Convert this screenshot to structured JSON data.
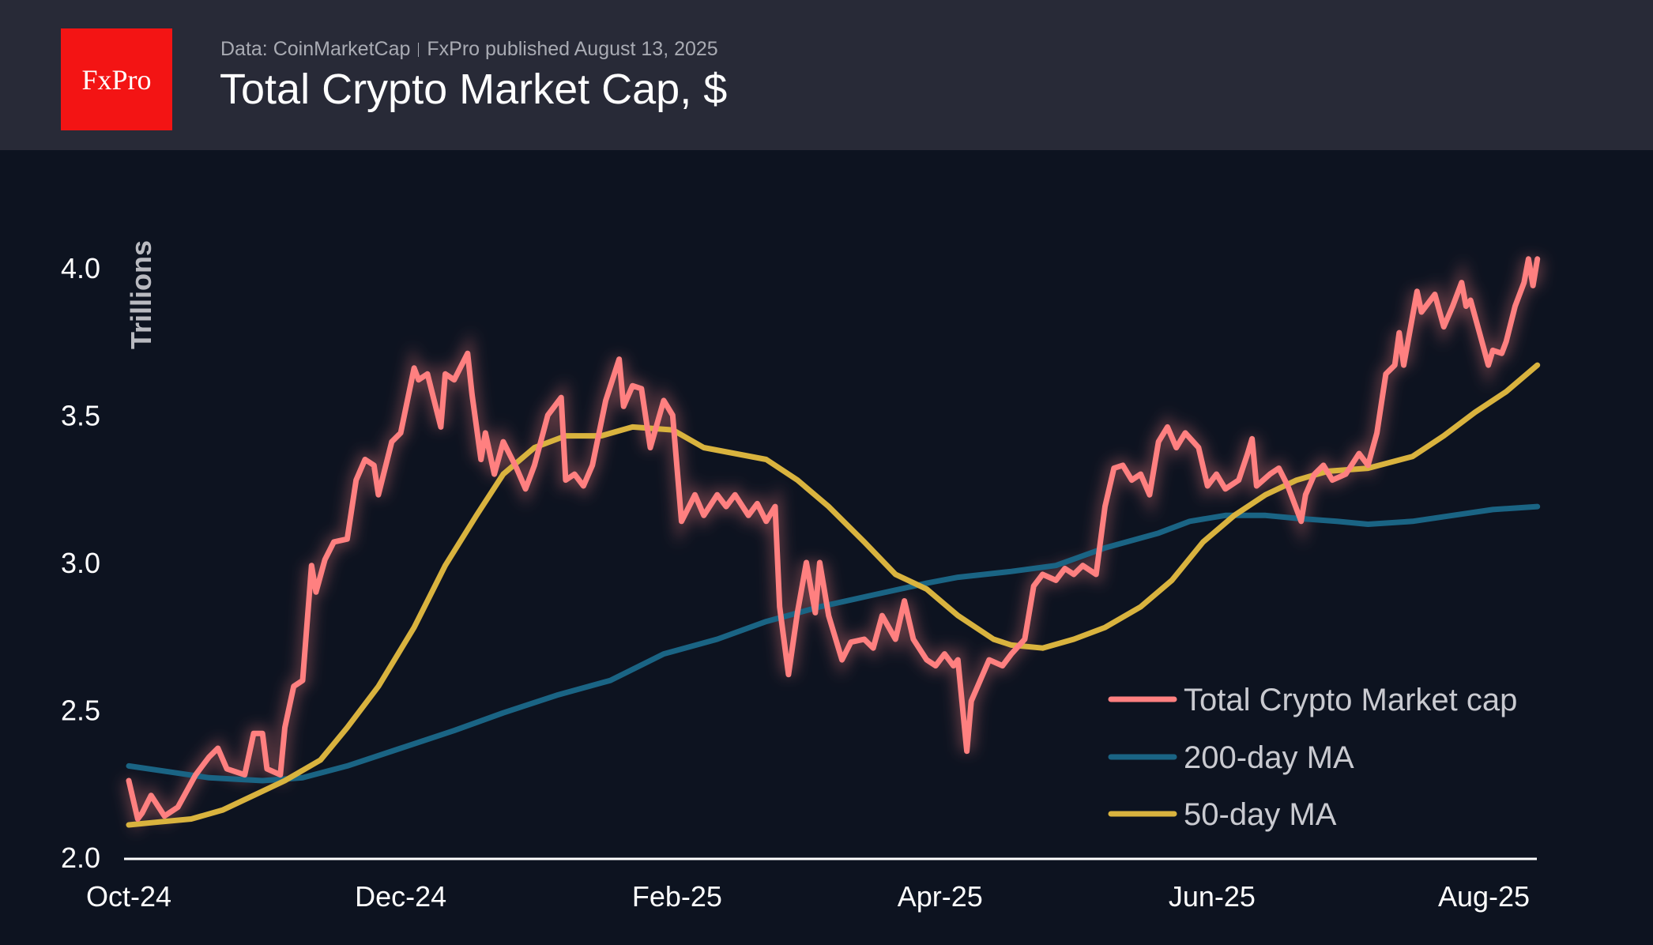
{
  "header": {
    "logo_text": "FxPro",
    "source": "Data: CoinMarketCap",
    "published": "FxPro published August 13, 2025",
    "title": "Total Crypto Market Cap, $"
  },
  "colors": {
    "header_bg": "#282a37",
    "plot_bg": "#0d1320",
    "logo": "#f31414",
    "market_cap": "#ff8080",
    "ma200": "#1a6484",
    "ma50": "#d9b33e"
  },
  "chart_data": {
    "type": "line",
    "title": "Total Crypto Market Cap, $",
    "xlabel": "",
    "ylabel": "Trillions",
    "ylim": [
      2.0,
      4.0
    ],
    "yticks": [
      "2.0",
      "2.5",
      "3.0",
      "3.5",
      "4.0"
    ],
    "xticks": [
      {
        "date": "2024-10-01",
        "label": "Oct-24"
      },
      {
        "date": "2024-12-01",
        "label": "Dec-24"
      },
      {
        "date": "2025-02-01",
        "label": "Feb-25"
      },
      {
        "date": "2025-04-01",
        "label": "Apr-25"
      },
      {
        "date": "2025-06-01",
        "label": "Jun-25"
      },
      {
        "date": "2025-08-01",
        "label": "Aug-25"
      }
    ],
    "grid": false,
    "legend": "bottom-right",
    "series": [
      {
        "name": "Total Crypto Market cap",
        "color": "#ff8080",
        "points": [
          [
            "2024-10-01",
            2.26
          ],
          [
            "2024-10-03",
            2.13
          ],
          [
            "2024-10-04",
            2.15
          ],
          [
            "2024-10-06",
            2.21
          ],
          [
            "2024-10-09",
            2.14
          ],
          [
            "2024-10-12",
            2.17
          ],
          [
            "2024-10-16",
            2.28
          ],
          [
            "2024-10-19",
            2.34
          ],
          [
            "2024-10-21",
            2.37
          ],
          [
            "2024-10-23",
            2.3
          ],
          [
            "2024-10-27",
            2.28
          ],
          [
            "2024-10-29",
            2.42
          ],
          [
            "2024-10-31",
            2.42
          ],
          [
            "2024-11-01",
            2.3
          ],
          [
            "2024-11-04",
            2.28
          ],
          [
            "2024-11-05",
            2.44
          ],
          [
            "2024-11-07",
            2.58
          ],
          [
            "2024-11-09",
            2.6
          ],
          [
            "2024-11-11",
            2.99
          ],
          [
            "2024-11-12",
            2.9
          ],
          [
            "2024-11-14",
            3.01
          ],
          [
            "2024-11-16",
            3.07
          ],
          [
            "2024-11-19",
            3.08
          ],
          [
            "2024-11-21",
            3.28
          ],
          [
            "2024-11-23",
            3.35
          ],
          [
            "2024-11-25",
            3.33
          ],
          [
            "2024-11-26",
            3.23
          ],
          [
            "2024-11-29",
            3.41
          ],
          [
            "2024-12-01",
            3.44
          ],
          [
            "2024-12-04",
            3.66
          ],
          [
            "2024-12-05",
            3.62
          ],
          [
            "2024-12-07",
            3.64
          ],
          [
            "2024-12-10",
            3.46
          ],
          [
            "2024-12-11",
            3.64
          ],
          [
            "2024-12-13",
            3.62
          ],
          [
            "2024-12-16",
            3.71
          ],
          [
            "2024-12-17",
            3.57
          ],
          [
            "2024-12-19",
            3.35
          ],
          [
            "2024-12-20",
            3.44
          ],
          [
            "2024-12-22",
            3.3
          ],
          [
            "2024-12-24",
            3.41
          ],
          [
            "2024-12-27",
            3.32
          ],
          [
            "2024-12-29",
            3.25
          ],
          [
            "2024-12-31",
            3.33
          ],
          [
            "2025-01-03",
            3.5
          ],
          [
            "2025-01-06",
            3.56
          ],
          [
            "2025-01-07",
            3.28
          ],
          [
            "2025-01-09",
            3.3
          ],
          [
            "2025-01-11",
            3.26
          ],
          [
            "2025-01-13",
            3.33
          ],
          [
            "2025-01-16",
            3.55
          ],
          [
            "2025-01-19",
            3.69
          ],
          [
            "2025-01-20",
            3.53
          ],
          [
            "2025-01-22",
            3.6
          ],
          [
            "2025-01-24",
            3.59
          ],
          [
            "2025-01-26",
            3.39
          ],
          [
            "2025-01-29",
            3.55
          ],
          [
            "2025-01-31",
            3.5
          ],
          [
            "2025-02-02",
            3.14
          ],
          [
            "2025-02-05",
            3.23
          ],
          [
            "2025-02-07",
            3.16
          ],
          [
            "2025-02-10",
            3.23
          ],
          [
            "2025-02-12",
            3.19
          ],
          [
            "2025-02-14",
            3.23
          ],
          [
            "2025-02-17",
            3.16
          ],
          [
            "2025-02-19",
            3.2
          ],
          [
            "2025-02-21",
            3.14
          ],
          [
            "2025-02-23",
            3.19
          ],
          [
            "2025-02-24",
            2.85
          ],
          [
            "2025-02-26",
            2.62
          ],
          [
            "2025-02-28",
            2.83
          ],
          [
            "2025-03-02",
            3.0
          ],
          [
            "2025-03-04",
            2.83
          ],
          [
            "2025-03-05",
            3.0
          ],
          [
            "2025-03-07",
            2.82
          ],
          [
            "2025-03-10",
            2.67
          ],
          [
            "2025-03-12",
            2.73
          ],
          [
            "2025-03-15",
            2.74
          ],
          [
            "2025-03-17",
            2.71
          ],
          [
            "2025-03-19",
            2.82
          ],
          [
            "2025-03-22",
            2.74
          ],
          [
            "2025-03-24",
            2.87
          ],
          [
            "2025-03-26",
            2.74
          ],
          [
            "2025-03-29",
            2.67
          ],
          [
            "2025-03-31",
            2.65
          ],
          [
            "2025-04-02",
            2.69
          ],
          [
            "2025-04-04",
            2.65
          ],
          [
            "2025-04-05",
            2.67
          ],
          [
            "2025-04-07",
            2.36
          ],
          [
            "2025-04-08",
            2.53
          ],
          [
            "2025-04-10",
            2.6
          ],
          [
            "2025-04-12",
            2.67
          ],
          [
            "2025-04-15",
            2.65
          ],
          [
            "2025-04-17",
            2.69
          ],
          [
            "2025-04-20",
            2.74
          ],
          [
            "2025-04-22",
            2.92
          ],
          [
            "2025-04-24",
            2.96
          ],
          [
            "2025-04-27",
            2.94
          ],
          [
            "2025-04-29",
            2.98
          ],
          [
            "2025-05-01",
            2.96
          ],
          [
            "2025-05-03",
            2.99
          ],
          [
            "2025-05-06",
            2.96
          ],
          [
            "2025-05-08",
            3.19
          ],
          [
            "2025-05-10",
            3.32
          ],
          [
            "2025-05-12",
            3.33
          ],
          [
            "2025-05-14",
            3.28
          ],
          [
            "2025-05-16",
            3.3
          ],
          [
            "2025-05-18",
            3.23
          ],
          [
            "2025-05-20",
            3.41
          ],
          [
            "2025-05-22",
            3.46
          ],
          [
            "2025-05-24",
            3.39
          ],
          [
            "2025-05-26",
            3.44
          ],
          [
            "2025-05-29",
            3.39
          ],
          [
            "2025-05-31",
            3.26
          ],
          [
            "2025-06-02",
            3.3
          ],
          [
            "2025-06-04",
            3.25
          ],
          [
            "2025-06-07",
            3.28
          ],
          [
            "2025-06-09",
            3.37
          ],
          [
            "2025-06-10",
            3.42
          ],
          [
            "2025-06-11",
            3.26
          ],
          [
            "2025-06-14",
            3.3
          ],
          [
            "2025-06-16",
            3.32
          ],
          [
            "2025-06-18",
            3.26
          ],
          [
            "2025-06-21",
            3.14
          ],
          [
            "2025-06-22",
            3.23
          ],
          [
            "2025-06-24",
            3.3
          ],
          [
            "2025-06-26",
            3.33
          ],
          [
            "2025-06-28",
            3.28
          ],
          [
            "2025-07-01",
            3.3
          ],
          [
            "2025-07-04",
            3.37
          ],
          [
            "2025-07-06",
            3.33
          ],
          [
            "2025-07-08",
            3.44
          ],
          [
            "2025-07-10",
            3.64
          ],
          [
            "2025-07-12",
            3.67
          ],
          [
            "2025-07-13",
            3.78
          ],
          [
            "2025-07-14",
            3.67
          ],
          [
            "2025-07-17",
            3.92
          ],
          [
            "2025-07-18",
            3.85
          ],
          [
            "2025-07-20",
            3.89
          ],
          [
            "2025-07-21",
            3.91
          ],
          [
            "2025-07-23",
            3.8
          ],
          [
            "2025-07-25",
            3.87
          ],
          [
            "2025-07-27",
            3.95
          ],
          [
            "2025-07-28",
            3.87
          ],
          [
            "2025-07-29",
            3.89
          ],
          [
            "2025-07-31",
            3.78
          ],
          [
            "2025-08-02",
            3.67
          ],
          [
            "2025-08-03",
            3.72
          ],
          [
            "2025-08-05",
            3.71
          ],
          [
            "2025-08-06",
            3.75
          ],
          [
            "2025-08-08",
            3.87
          ],
          [
            "2025-08-10",
            3.95
          ],
          [
            "2025-08-11",
            4.03
          ],
          [
            "2025-08-12",
            3.94
          ],
          [
            "2025-08-13",
            4.03
          ]
        ]
      },
      {
        "name": "200-day MA",
        "color": "#1a6484",
        "points": [
          [
            "2024-10-01",
            2.31
          ],
          [
            "2024-10-10",
            2.29
          ],
          [
            "2024-10-19",
            2.27
          ],
          [
            "2024-10-31",
            2.26
          ],
          [
            "2024-11-09",
            2.27
          ],
          [
            "2024-11-19",
            2.31
          ],
          [
            "2024-12-01",
            2.37
          ],
          [
            "2024-12-13",
            2.43
          ],
          [
            "2024-12-24",
            2.49
          ],
          [
            "2025-01-05",
            2.55
          ],
          [
            "2025-01-17",
            2.6
          ],
          [
            "2025-01-29",
            2.69
          ],
          [
            "2025-02-10",
            2.74
          ],
          [
            "2025-02-21",
            2.8
          ],
          [
            "2025-03-05",
            2.85
          ],
          [
            "2025-03-17",
            2.89
          ],
          [
            "2025-03-29",
            2.93
          ],
          [
            "2025-04-05",
            2.95
          ],
          [
            "2025-04-17",
            2.97
          ],
          [
            "2025-04-27",
            2.99
          ],
          [
            "2025-05-08",
            3.05
          ],
          [
            "2025-05-20",
            3.1
          ],
          [
            "2025-05-27",
            3.14
          ],
          [
            "2025-06-04",
            3.16
          ],
          [
            "2025-06-13",
            3.16
          ],
          [
            "2025-06-20",
            3.15
          ],
          [
            "2025-06-29",
            3.14
          ],
          [
            "2025-07-06",
            3.13
          ],
          [
            "2025-07-16",
            3.14
          ],
          [
            "2025-07-25",
            3.16
          ],
          [
            "2025-08-03",
            3.18
          ],
          [
            "2025-08-13",
            3.19
          ]
        ]
      },
      {
        "name": "50-day MA",
        "color": "#d9b33e",
        "points": [
          [
            "2024-10-01",
            2.11
          ],
          [
            "2024-10-08",
            2.12
          ],
          [
            "2024-10-15",
            2.13
          ],
          [
            "2024-10-22",
            2.16
          ],
          [
            "2024-10-29",
            2.21
          ],
          [
            "2024-11-05",
            2.26
          ],
          [
            "2024-11-13",
            2.33
          ],
          [
            "2024-11-19",
            2.44
          ],
          [
            "2024-11-26",
            2.58
          ],
          [
            "2024-12-04",
            2.78
          ],
          [
            "2024-12-11",
            2.99
          ],
          [
            "2024-12-18",
            3.16
          ],
          [
            "2024-12-24",
            3.3
          ],
          [
            "2024-12-31",
            3.39
          ],
          [
            "2025-01-07",
            3.43
          ],
          [
            "2025-01-15",
            3.43
          ],
          [
            "2025-01-22",
            3.46
          ],
          [
            "2025-01-31",
            3.45
          ],
          [
            "2025-02-07",
            3.39
          ],
          [
            "2025-02-14",
            3.37
          ],
          [
            "2025-02-21",
            3.35
          ],
          [
            "2025-02-28",
            3.28
          ],
          [
            "2025-03-07",
            3.19
          ],
          [
            "2025-03-15",
            3.07
          ],
          [
            "2025-03-22",
            2.96
          ],
          [
            "2025-03-29",
            2.91
          ],
          [
            "2025-04-05",
            2.82
          ],
          [
            "2025-04-13",
            2.74
          ],
          [
            "2025-04-17",
            2.72
          ],
          [
            "2025-04-24",
            2.71
          ],
          [
            "2025-05-01",
            2.74
          ],
          [
            "2025-05-08",
            2.78
          ],
          [
            "2025-05-16",
            2.85
          ],
          [
            "2025-05-23",
            2.94
          ],
          [
            "2025-05-30",
            3.07
          ],
          [
            "2025-06-06",
            3.16
          ],
          [
            "2025-06-13",
            3.23
          ],
          [
            "2025-06-20",
            3.28
          ],
          [
            "2025-06-27",
            3.31
          ],
          [
            "2025-07-06",
            3.32
          ],
          [
            "2025-07-16",
            3.36
          ],
          [
            "2025-07-23",
            3.43
          ],
          [
            "2025-07-30",
            3.51
          ],
          [
            "2025-08-06",
            3.58
          ],
          [
            "2025-08-13",
            3.67
          ]
        ]
      }
    ]
  }
}
